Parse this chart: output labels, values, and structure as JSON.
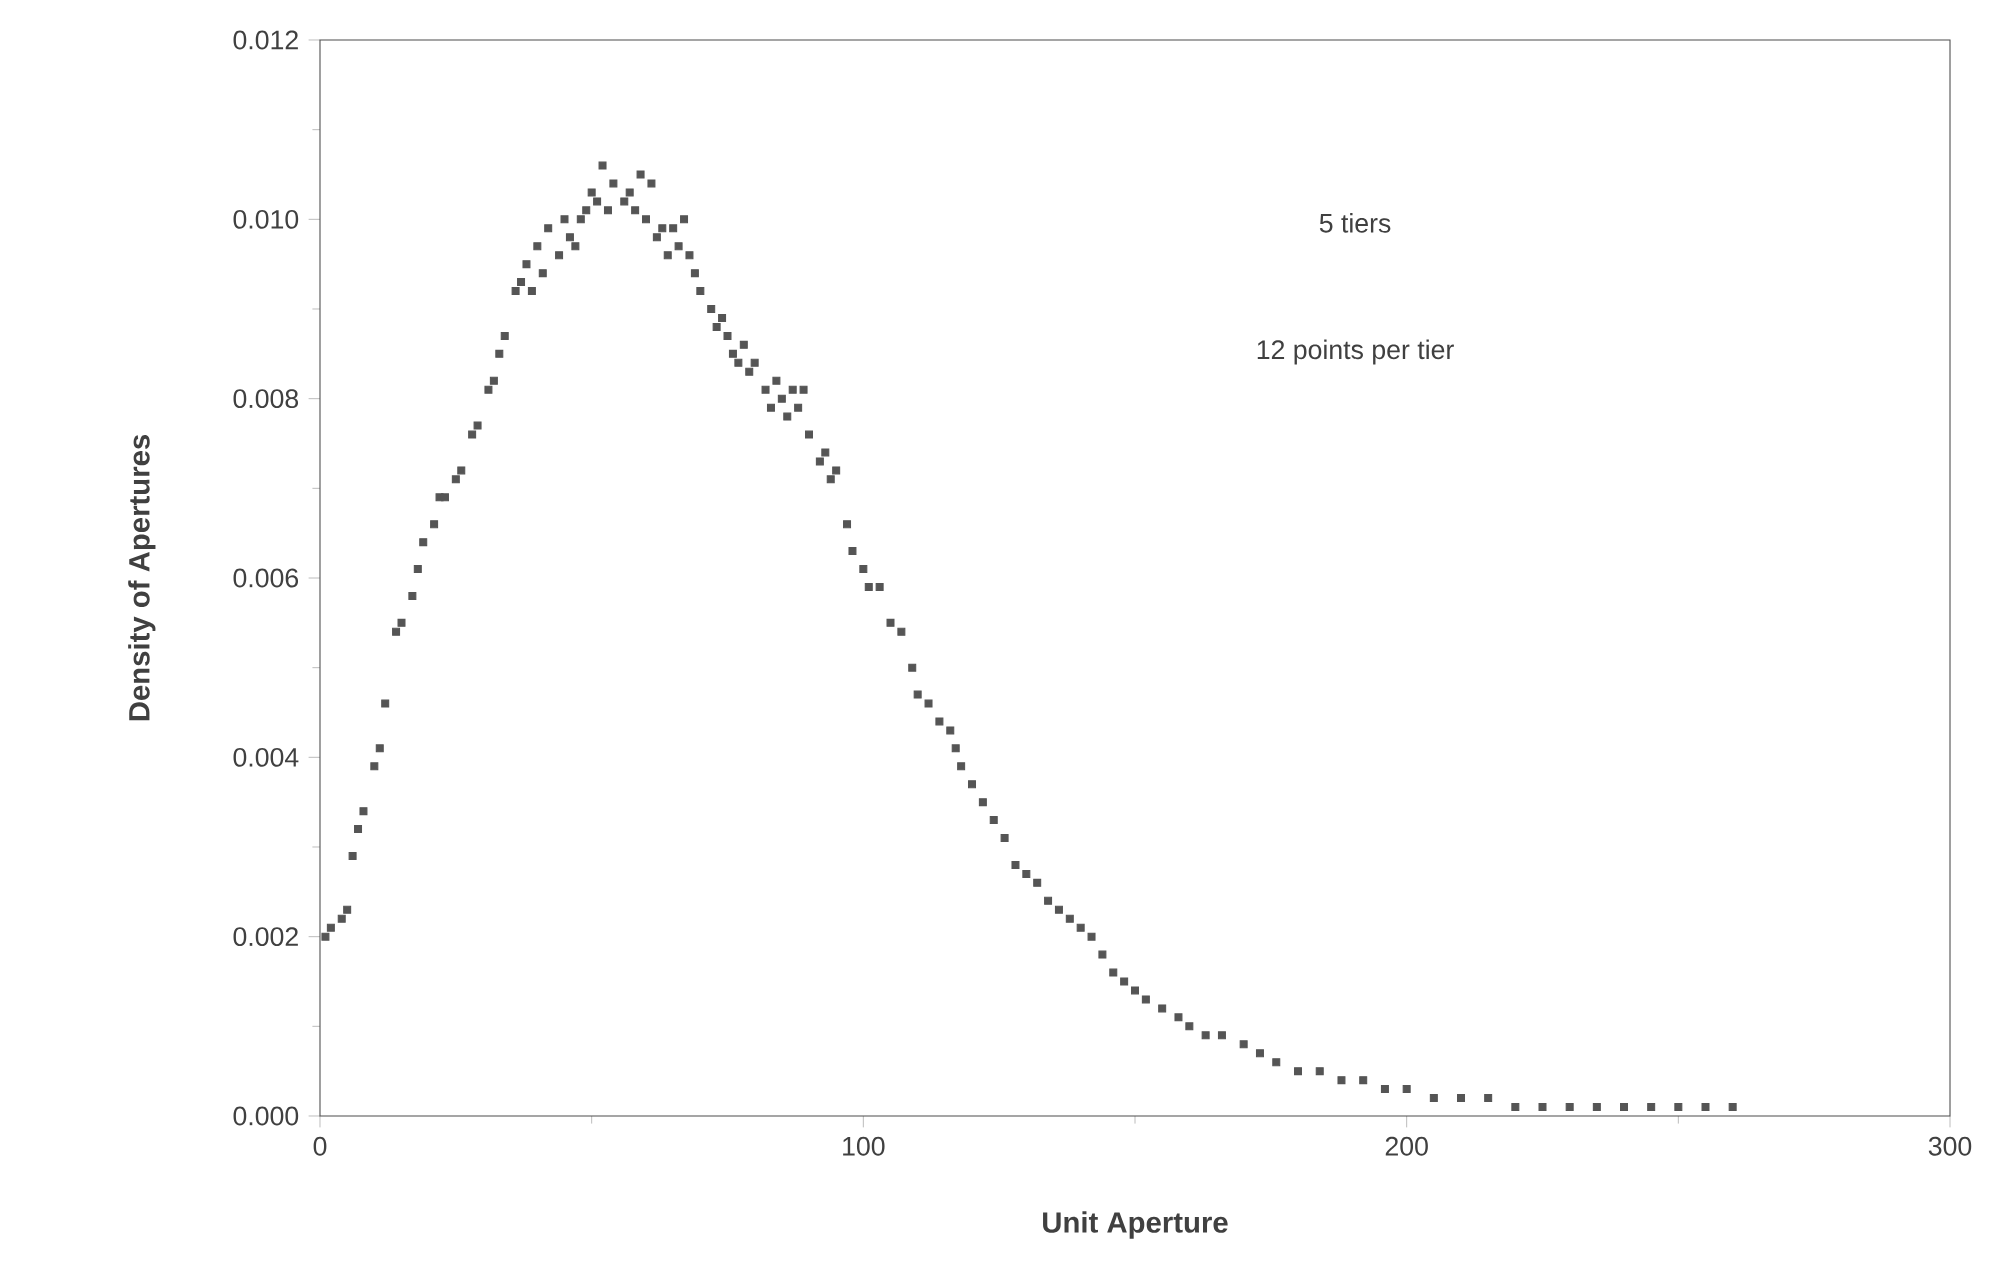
{
  "chart_data": {
    "type": "scatter",
    "xlabel": "Unit Aperture",
    "ylabel": "Density of Apertures",
    "annotations": [
      "5 tiers",
      "12 points per tier"
    ],
    "xlim": [
      0,
      300
    ],
    "xticks": [
      0,
      100,
      200,
      300
    ],
    "ylim": [
      0,
      0.012
    ],
    "yticks": [
      {
        "value": 0,
        "label": "0.000"
      },
      {
        "value": 0.002,
        "label": "0.002"
      },
      {
        "value": 0.004,
        "label": "0.004"
      },
      {
        "value": 0.006,
        "label": "0.006"
      },
      {
        "value": 0.008,
        "label": "0.008"
      },
      {
        "value": 0.01,
        "label": "0.010"
      },
      {
        "value": 0.012,
        "label": "0.012"
      }
    ],
    "marker": "square",
    "series": [
      {
        "color": "#555555",
        "x": [
          1,
          2,
          4,
          5,
          6,
          7,
          8,
          10,
          11,
          12,
          14,
          15,
          17,
          18,
          19,
          21,
          22,
          23,
          25,
          26,
          28,
          29,
          31,
          32,
          33,
          34,
          36,
          37,
          38,
          39,
          40,
          41,
          42,
          44,
          45,
          46,
          47,
          48,
          49,
          50,
          51,
          52,
          53,
          54,
          56,
          57,
          58,
          59,
          60,
          61,
          62,
          63,
          64,
          65,
          66,
          67,
          68,
          69,
          70,
          72,
          73,
          74,
          75,
          76,
          77,
          78,
          79,
          80,
          82,
          83,
          84,
          85,
          86,
          87,
          88,
          89,
          90,
          92,
          93,
          94,
          95,
          97,
          98,
          100,
          101,
          103,
          105,
          107,
          109,
          110,
          112,
          114,
          116,
          117,
          118,
          120,
          122,
          124,
          126,
          128,
          130,
          132,
          134,
          136,
          138,
          140,
          142,
          144,
          146,
          148,
          150,
          152,
          155,
          158,
          160,
          163,
          166,
          170,
          173,
          176,
          180,
          184,
          188,
          192,
          196,
          200,
          205,
          210,
          215,
          220,
          225,
          230,
          235,
          240,
          245,
          250,
          255,
          260
        ],
        "values": [
          0.002,
          0.0021,
          0.0022,
          0.0023,
          0.0029,
          0.0032,
          0.0034,
          0.0039,
          0.0041,
          0.0046,
          0.0054,
          0.0055,
          0.0058,
          0.0061,
          0.0064,
          0.0066,
          0.0069,
          0.0069,
          0.0071,
          0.0072,
          0.0076,
          0.0077,
          0.0081,
          0.0082,
          0.0085,
          0.0087,
          0.0092,
          0.0093,
          0.0095,
          0.0092,
          0.0097,
          0.0094,
          0.0099,
          0.0096,
          0.01,
          0.0098,
          0.0097,
          0.01,
          0.0101,
          0.0103,
          0.0102,
          0.0106,
          0.0101,
          0.0104,
          0.0102,
          0.0103,
          0.0101,
          0.0105,
          0.01,
          0.0104,
          0.0098,
          0.0099,
          0.0096,
          0.0099,
          0.0097,
          0.01,
          0.0096,
          0.0094,
          0.0092,
          0.009,
          0.0088,
          0.0089,
          0.0087,
          0.0085,
          0.0084,
          0.0086,
          0.0083,
          0.0084,
          0.0081,
          0.0079,
          0.0082,
          0.008,
          0.0078,
          0.0081,
          0.0079,
          0.0081,
          0.0076,
          0.0073,
          0.0074,
          0.0071,
          0.0072,
          0.0066,
          0.0063,
          0.0061,
          0.0059,
          0.0059,
          0.0055,
          0.0054,
          0.005,
          0.0047,
          0.0046,
          0.0044,
          0.0043,
          0.0041,
          0.0039,
          0.0037,
          0.0035,
          0.0033,
          0.0031,
          0.0028,
          0.0027,
          0.0026,
          0.0024,
          0.0023,
          0.0022,
          0.0021,
          0.002,
          0.0018,
          0.0016,
          0.0015,
          0.0014,
          0.0013,
          0.0012,
          0.0011,
          0.001,
          0.0009,
          0.0009,
          0.0008,
          0.0007,
          0.0006,
          0.0005,
          0.0005,
          0.0004,
          0.0004,
          0.0003,
          0.0003,
          0.0002,
          0.0002,
          0.0002,
          0.0001,
          0.0001,
          0.0001,
          0.0001,
          0.0001,
          0.0001,
          0.0001,
          0.0001,
          0.0001
        ]
      }
    ]
  }
}
